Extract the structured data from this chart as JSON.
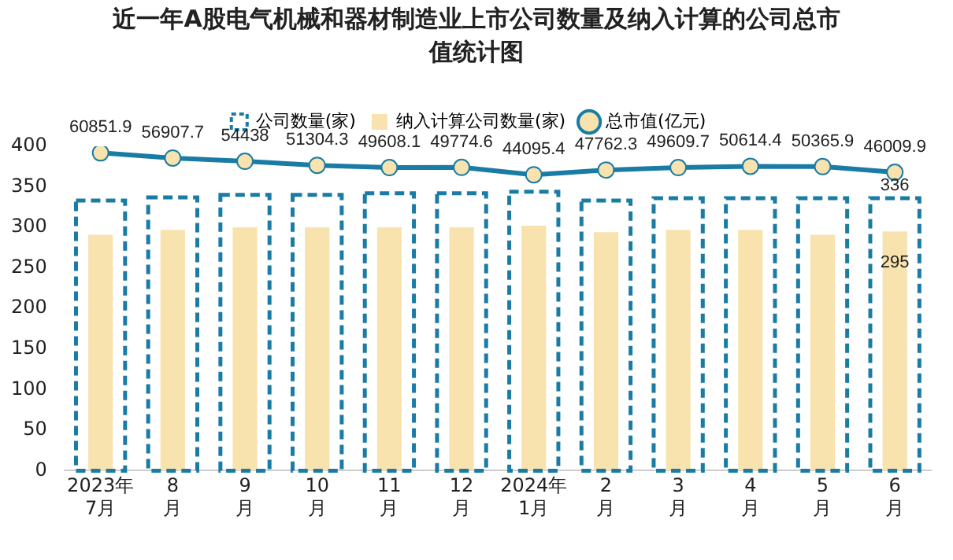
{
  "chart_data": {
    "type": "bar",
    "title": "近一年A股电气机械和器材制造业上市公司数量及纳入计算的公司总市值统计图",
    "categories": [
      "2023年\n7月",
      "8\n月",
      "9\n月",
      "10\n月",
      "11\n月",
      "12\n月",
      "2024年\n1月",
      "2\n月",
      "3\n月",
      "4\n月",
      "5\n月",
      "6\n月"
    ],
    "series": [
      {
        "name": "公司数量(家)",
        "line_style": "dashed",
        "color": "#1a7ca5",
        "values": [
          333,
          337,
          340,
          340,
          342,
          342,
          344,
          333,
          336,
          336,
          336,
          336
        ],
        "value_labels": [
          null,
          null,
          null,
          null,
          null,
          null,
          null,
          null,
          null,
          null,
          null,
          "336"
        ]
      },
      {
        "name": "纳入计算公司数量(家)",
        "color": "#f8e3ae",
        "values": [
          291,
          297,
          300,
          300,
          300,
          300,
          302,
          294,
          297,
          297,
          291,
          295
        ],
        "value_labels": [
          null,
          null,
          null,
          null,
          null,
          null,
          null,
          null,
          null,
          null,
          null,
          "295"
        ]
      },
      {
        "name": "总市值(亿元)",
        "type": "line",
        "axis": "y2",
        "marker": "circle",
        "color": "#1a7ca5",
        "values": [
          60851.9,
          56907.7,
          54438,
          51304.3,
          49608.1,
          49774.6,
          44095.4,
          47762.3,
          49609.7,
          50614.4,
          50365.9,
          46009.9
        ],
        "value_labels": [
          "60851.9",
          "56907.7",
          "54438",
          "51304.3",
          "49608.1",
          "49774.6",
          "44095.4",
          "47762.3",
          "49609.7",
          "50614.4",
          "50365.9",
          "46009.9"
        ]
      }
    ],
    "ylim": [
      0,
      400
    ],
    "yticks": [
      0,
      50,
      100,
      150,
      200,
      250,
      300,
      350,
      400
    ],
    "grid": false,
    "legend": "top",
    "tick_labels": "xy"
  }
}
